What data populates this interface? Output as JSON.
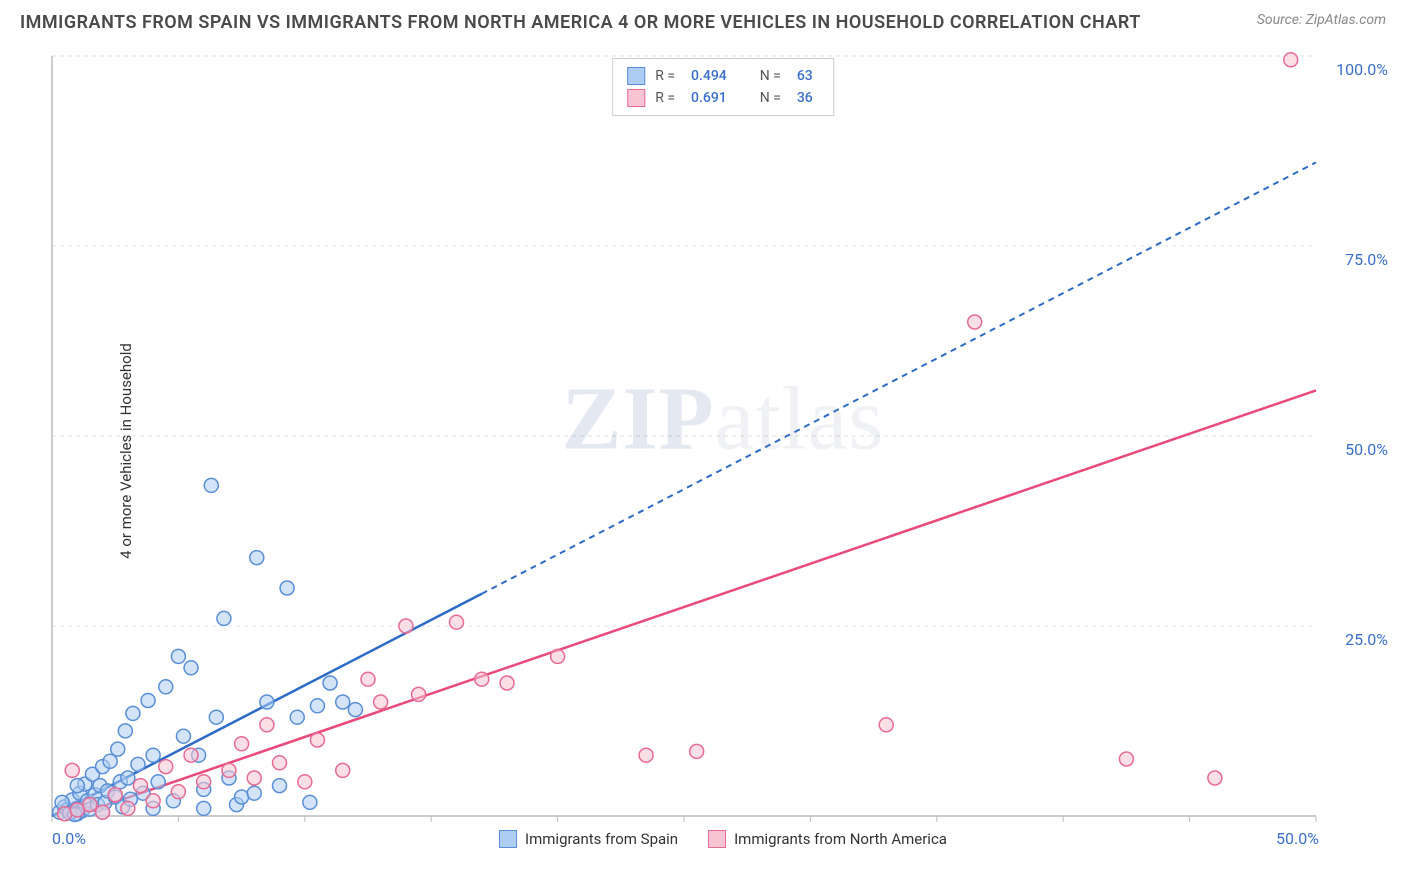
{
  "title": "IMMIGRANTS FROM SPAIN VS IMMIGRANTS FROM NORTH AMERICA 4 OR MORE VEHICLES IN HOUSEHOLD CORRELATION CHART",
  "source": "Source: ZipAtlas.com",
  "ylabel": "4 or more Vehicles in Household",
  "watermark_a": "ZIP",
  "watermark_b": "atlas",
  "chart": {
    "type": "scatter",
    "xlim": [
      0,
      50
    ],
    "ylim": [
      0,
      100
    ],
    "x_ticks": [
      0,
      5,
      10,
      15,
      20,
      25,
      30,
      35,
      40,
      45,
      50
    ],
    "y_ticks": [
      0,
      25,
      50,
      75,
      100
    ],
    "x_tick_labels": {
      "0": "0.0%",
      "50": "50.0%"
    },
    "y_tick_labels": {
      "25": "25.0%",
      "50": "50.0%",
      "75": "75.0%",
      "100": "100.0%"
    },
    "background_color": "#ffffff",
    "grid_color": "#e0e0e0",
    "axis_color": "#bbbbbb",
    "tick_label_color": "#3b6fc9",
    "marker_radius": 7,
    "marker_stroke_width": 1.5,
    "series": [
      {
        "name": "Immigrants from Spain",
        "short": "spain",
        "fill": "#aecdf2",
        "stroke": "#5a8fd6",
        "fill_opacity": 0.55,
        "R": "0.494",
        "N": "63",
        "trend": {
          "slope": 1.72,
          "intercept": 0,
          "solid_until_x": 17,
          "color": "#2e6bc7",
          "width": 2.5
        },
        "points": [
          [
            0.3,
            0.5
          ],
          [
            0.5,
            1.2
          ],
          [
            0.6,
            0.8
          ],
          [
            0.8,
            2.1
          ],
          [
            1.0,
            1.0
          ],
          [
            1.1,
            3.0
          ],
          [
            1.2,
            0.7
          ],
          [
            1.3,
            4.2
          ],
          [
            1.4,
            2.0
          ],
          [
            1.5,
            0.9
          ],
          [
            1.6,
            5.5
          ],
          [
            1.7,
            2.8
          ],
          [
            1.8,
            1.5
          ],
          [
            1.9,
            4.0
          ],
          [
            2.0,
            6.5
          ],
          [
            2.1,
            1.8
          ],
          [
            2.2,
            3.3
          ],
          [
            2.3,
            7.2
          ],
          [
            2.5,
            2.5
          ],
          [
            2.6,
            8.8
          ],
          [
            2.7,
            4.5
          ],
          [
            2.8,
            1.2
          ],
          [
            2.9,
            11.2
          ],
          [
            3.0,
            5.0
          ],
          [
            3.1,
            2.2
          ],
          [
            3.2,
            13.5
          ],
          [
            3.4,
            6.8
          ],
          [
            3.6,
            3.0
          ],
          [
            3.8,
            15.2
          ],
          [
            4.0,
            8.0
          ],
          [
            4.2,
            4.5
          ],
          [
            4.5,
            17.0
          ],
          [
            4.8,
            2.0
          ],
          [
            5.0,
            21.0
          ],
          [
            5.2,
            10.5
          ],
          [
            5.5,
            19.5
          ],
          [
            6.0,
            3.5
          ],
          [
            6.3,
            43.5
          ],
          [
            6.5,
            13.0
          ],
          [
            6.8,
            26.0
          ],
          [
            7.0,
            5.0
          ],
          [
            7.3,
            1.5
          ],
          [
            7.5,
            2.5
          ],
          [
            8.1,
            34.0
          ],
          [
            8.5,
            15.0
          ],
          [
            9.0,
            4.0
          ],
          [
            9.3,
            30.0
          ],
          [
            9.7,
            13.0
          ],
          [
            10.2,
            1.8
          ],
          [
            10.5,
            14.5
          ],
          [
            11.0,
            17.5
          ],
          [
            11.5,
            15.0
          ],
          [
            12.0,
            14.0
          ],
          [
            6.0,
            1.0
          ],
          [
            1.0,
            0.3
          ],
          [
            0.4,
            1.8
          ],
          [
            0.7,
            0.4
          ],
          [
            1.0,
            4.0
          ],
          [
            2.0,
            0.5
          ],
          [
            4.0,
            1.0
          ],
          [
            8.0,
            3.0
          ],
          [
            5.8,
            8.0
          ],
          [
            0.9,
            0.2
          ]
        ]
      },
      {
        "name": "Immigrants from North America",
        "short": "north-america",
        "fill": "#f7c4d4",
        "stroke": "#e86b94",
        "fill_opacity": 0.55,
        "R": "0.691",
        "N": "36",
        "trend": {
          "slope": 1.14,
          "intercept": -1.0,
          "solid_until_x": 50,
          "color": "#e84a7a",
          "width": 2.5
        },
        "points": [
          [
            0.5,
            0.3
          ],
          [
            1.0,
            0.8
          ],
          [
            1.5,
            1.5
          ],
          [
            2.0,
            0.5
          ],
          [
            2.5,
            2.8
          ],
          [
            3.0,
            1.0
          ],
          [
            3.5,
            4.0
          ],
          [
            4.0,
            2.0
          ],
          [
            4.5,
            6.5
          ],
          [
            5.0,
            3.2
          ],
          [
            5.5,
            8.0
          ],
          [
            6.0,
            4.5
          ],
          [
            7.0,
            6.0
          ],
          [
            7.5,
            9.5
          ],
          [
            8.0,
            5.0
          ],
          [
            8.5,
            12.0
          ],
          [
            9.0,
            7.0
          ],
          [
            10.0,
            4.5
          ],
          [
            10.5,
            10.0
          ],
          [
            11.5,
            6.0
          ],
          [
            12.5,
            18.0
          ],
          [
            13.0,
            15.0
          ],
          [
            14.0,
            25.0
          ],
          [
            14.5,
            16.0
          ],
          [
            16.0,
            25.5
          ],
          [
            17.0,
            18.0
          ],
          [
            18.0,
            17.5
          ],
          [
            20.0,
            21.0
          ],
          [
            23.5,
            8.0
          ],
          [
            25.5,
            8.5
          ],
          [
            33.0,
            12.0
          ],
          [
            36.5,
            65.0
          ],
          [
            42.5,
            7.5
          ],
          [
            46.0,
            5.0
          ],
          [
            49.0,
            99.5
          ],
          [
            0.8,
            6.0
          ]
        ]
      }
    ],
    "legend": {
      "top": {
        "R_label": "R =",
        "N_label": "N ="
      },
      "bottom": [
        {
          "series": 0
        },
        {
          "series": 1
        }
      ]
    }
  }
}
